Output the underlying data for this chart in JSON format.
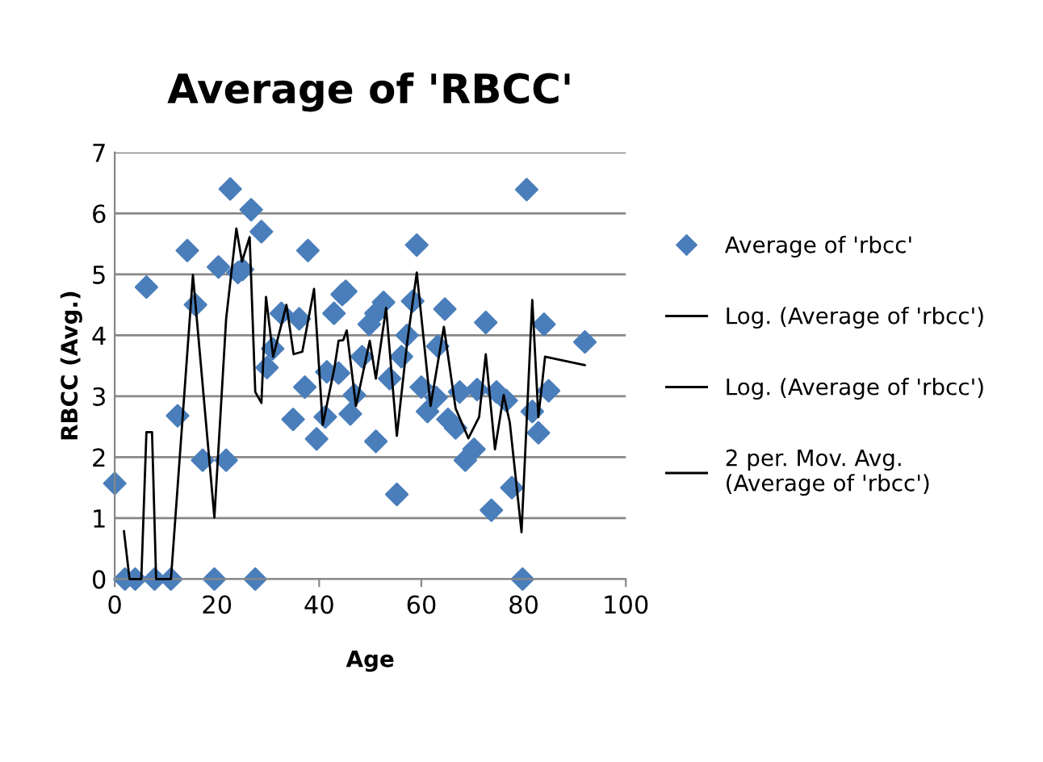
{
  "chart_data": {
    "type": "scatter",
    "title": "Average of 'RBCC'",
    "xlabel": "Age",
    "ylabel": "RBCC (Avg.)",
    "xlim": [
      0,
      100
    ],
    "xticks": [
      0,
      20,
      40,
      60,
      80,
      100
    ],
    "ylim": [
      0,
      7
    ],
    "yticks": [
      0,
      1,
      2,
      3,
      4,
      5,
      6,
      7
    ],
    "grid": "y",
    "legend": "right",
    "series": [
      {
        "name": "Average of 'rbcc'",
        "marker": "diamond",
        "color": "#4a7ebb",
        "x": [
          0,
          2,
          4,
          6.2,
          7.8,
          11,
          12.3,
          14.2,
          15.8,
          17.2,
          19.5,
          20.3,
          21.8,
          22.6,
          24.1,
          25,
          26.7,
          27.5,
          28.7,
          29.8,
          30.9,
          32.6,
          34.9,
          36.1,
          37.2,
          37.8,
          39.5,
          41.2,
          41.5,
          42.9,
          43.8,
          44.5,
          45.2,
          46.1,
          46.9,
          48.4,
          49.8,
          51.1,
          51.1,
          52.6,
          53.8,
          55.2,
          56.1,
          57.2,
          58.3,
          59.1,
          60,
          61.2,
          62.9,
          63.2,
          64.6,
          65.2,
          66.7,
          67.5,
          68.6,
          70.3,
          70.9,
          72.6,
          73.7,
          74.7,
          76.6,
          77.7,
          79.8,
          80.6,
          81.7,
          82.9,
          84,
          84.9,
          92
        ],
        "values": [
          1.57,
          0,
          0,
          4.79,
          0,
          0,
          2.68,
          5.39,
          4.5,
          1.95,
          0,
          5.12,
          1.95,
          6.4,
          5.03,
          5.08,
          6.06,
          0,
          5.7,
          3.47,
          3.78,
          4.36,
          2.62,
          4.27,
          3.15,
          5.39,
          2.3,
          2.66,
          3.4,
          4.36,
          3.38,
          4.67,
          4.72,
          2.71,
          3.02,
          3.65,
          4.18,
          4.36,
          2.26,
          4.54,
          3.29,
          1.39,
          3.65,
          4.0,
          4.56,
          5.48,
          3.15,
          2.75,
          2.98,
          3.82,
          4.43,
          2.62,
          2.48,
          3.07,
          1.95,
          2.13,
          3.11,
          4.21,
          1.13,
          3.07,
          2.93,
          1.5,
          0,
          6.39,
          2.75,
          2.4,
          4.18,
          3.09,
          3.89
        ]
      },
      {
        "name": "Log. (Average of 'rbcc')",
        "type": "line",
        "color": "#000000"
      },
      {
        "name": "Log. (Average of 'rbcc')",
        "type": "line",
        "color": "#000000"
      },
      {
        "name": "2 per. Mov. Avg.\n(Average of 'rbcc')",
        "type": "line",
        "marker": "none",
        "line_style": "solid",
        "color": "#000000",
        "x": [
          1.8,
          2.9,
          5.2,
          6.2,
          7.3,
          8.1,
          11,
          15.3,
          19.5,
          21.8,
          23.8,
          24.9,
          26.4,
          27.5,
          28.7,
          29.6,
          31,
          33.6,
          35,
          36.7,
          39,
          40.7,
          43,
          43.8,
          44.7,
          45.4,
          47.2,
          49.9,
          51.1,
          53.1,
          55.2,
          57.2,
          59.1,
          61.8,
          64.4,
          66.7,
          69.2,
          71.3,
          72.6,
          74.4,
          76.1,
          77.3,
          79.6,
          81.7,
          82.9,
          84.2,
          92
        ],
        "values": [
          0.79,
          0,
          0,
          2.41,
          2.41,
          0,
          0,
          4.99,
          1.01,
          4.27,
          5.75,
          5.21,
          5.61,
          3.07,
          2.89,
          4.63,
          3.65,
          4.5,
          3.69,
          3.73,
          4.76,
          2.53,
          3.47,
          3.91,
          3.92,
          4.08,
          2.84,
          3.91,
          3.29,
          4.45,
          2.35,
          3.87,
          5.03,
          2.84,
          4.14,
          2.8,
          2.31,
          2.66,
          3.69,
          2.13,
          3.02,
          2.57,
          0.77,
          4.58,
          2.66,
          3.65,
          3.51
        ]
      }
    ]
  }
}
